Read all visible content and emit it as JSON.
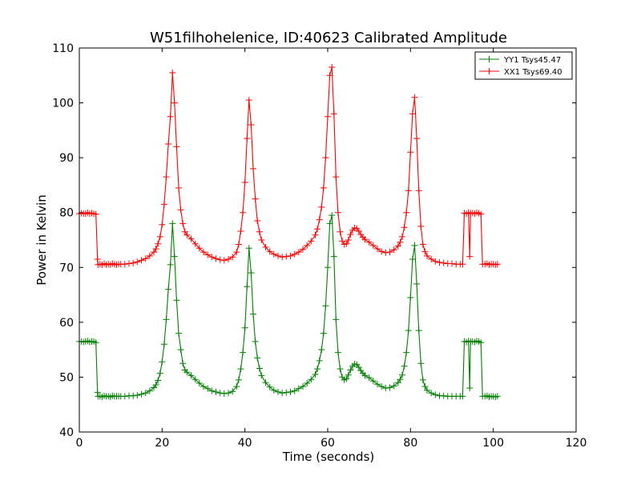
{
  "chart_data": {
    "type": "line",
    "title": "W51filhohelenice, ID:40623 Calibrated Amplitude",
    "xlabel": "Time (seconds)",
    "ylabel": "Power in Kelvin",
    "xlim": [
      0,
      120
    ],
    "ylim": [
      40,
      110
    ],
    "xticks": [
      0,
      20,
      40,
      60,
      80,
      100,
      120
    ],
    "yticks": [
      40,
      50,
      60,
      70,
      80,
      90,
      100,
      110
    ],
    "grid": false,
    "legend_position": "top-right",
    "marker": "+",
    "series": [
      {
        "name": "YY1 Tsys45.47",
        "color": "#008000",
        "points": [
          [
            0.0,
            56.5
          ],
          [
            0.5,
            56.5
          ],
          [
            1.0,
            56.4
          ],
          [
            1.5,
            56.5
          ],
          [
            2.0,
            56.6
          ],
          [
            2.5,
            56.4
          ],
          [
            3.0,
            56.5
          ],
          [
            3.5,
            56.5
          ],
          [
            4.0,
            56.3
          ],
          [
            4.4,
            47.2
          ],
          [
            4.5,
            46.5
          ],
          [
            5.0,
            46.5
          ],
          [
            5.5,
            46.4
          ],
          [
            6.0,
            46.6
          ],
          [
            6.5,
            46.5
          ],
          [
            7.0,
            46.5
          ],
          [
            7.5,
            46.4
          ],
          [
            8.0,
            46.6
          ],
          [
            8.5,
            46.5
          ],
          [
            9.0,
            46.5
          ],
          [
            9.5,
            46.5
          ],
          [
            10.0,
            46.5
          ],
          [
            11.0,
            46.5
          ],
          [
            12.0,
            46.6
          ],
          [
            13.0,
            46.6
          ],
          [
            14.0,
            46.7
          ],
          [
            15.0,
            46.9
          ],
          [
            16.0,
            47.1
          ],
          [
            17.0,
            47.5
          ],
          [
            18.0,
            48.1
          ],
          [
            18.5,
            48.6
          ],
          [
            19.0,
            49.4
          ],
          [
            19.5,
            50.7
          ],
          [
            20.0,
            52.8
          ],
          [
            20.5,
            56.0
          ],
          [
            21.0,
            60.5
          ],
          [
            21.5,
            66.0
          ],
          [
            22.0,
            70.5
          ],
          [
            22.5,
            78.0
          ],
          [
            23.0,
            72.0
          ],
          [
            23.5,
            64.0
          ],
          [
            24.0,
            58.0
          ],
          [
            24.5,
            55.0
          ],
          [
            25.0,
            52.5
          ],
          [
            25.5,
            51.3
          ],
          [
            26.0,
            50.9
          ],
          [
            27.0,
            50.3
          ],
          [
            28.0,
            49.6
          ],
          [
            29.0,
            48.9
          ],
          [
            30.0,
            48.3
          ],
          [
            31.0,
            47.9
          ],
          [
            32.0,
            47.5
          ],
          [
            33.0,
            47.3
          ],
          [
            34.0,
            47.1
          ],
          [
            35.0,
            47.0
          ],
          [
            36.0,
            47.1
          ],
          [
            37.0,
            47.4
          ],
          [
            38.0,
            48.3
          ],
          [
            38.5,
            49.5
          ],
          [
            39.0,
            51.5
          ],
          [
            39.5,
            54.5
          ],
          [
            40.0,
            59.0
          ],
          [
            40.5,
            66.5
          ],
          [
            41.0,
            73.5
          ],
          [
            41.5,
            69.0
          ],
          [
            42.0,
            61.5
          ],
          [
            42.5,
            56.5
          ],
          [
            43.0,
            53.5
          ],
          [
            43.5,
            51.6
          ],
          [
            44.0,
            50.3
          ],
          [
            45.0,
            49.0
          ],
          [
            46.0,
            48.2
          ],
          [
            47.0,
            47.6
          ],
          [
            48.0,
            47.3
          ],
          [
            49.0,
            47.1
          ],
          [
            50.0,
            47.2
          ],
          [
            51.0,
            47.3
          ],
          [
            52.0,
            47.5
          ],
          [
            53.0,
            47.9
          ],
          [
            54.0,
            48.3
          ],
          [
            55.0,
            48.9
          ],
          [
            56.0,
            49.6
          ],
          [
            57.0,
            50.5
          ],
          [
            57.5,
            51.5
          ],
          [
            58.0,
            53.0
          ],
          [
            58.5,
            55.0
          ],
          [
            59.0,
            58.0
          ],
          [
            59.5,
            63.0
          ],
          [
            60.0,
            70.0
          ],
          [
            60.5,
            78.0
          ],
          [
            61.0,
            79.5
          ],
          [
            61.5,
            72.0
          ],
          [
            62.0,
            60.5
          ],
          [
            62.5,
            54.5
          ],
          [
            63.0,
            51.5
          ],
          [
            63.5,
            50.0
          ],
          [
            64.0,
            49.5
          ],
          [
            64.5,
            49.7
          ],
          [
            65.0,
            50.4
          ],
          [
            65.5,
            51.3
          ],
          [
            66.0,
            52.0
          ],
          [
            66.5,
            52.4
          ],
          [
            67.0,
            52.3
          ],
          [
            67.5,
            51.8
          ],
          [
            68.0,
            51.2
          ],
          [
            68.5,
            50.7
          ],
          [
            69.0,
            50.3
          ],
          [
            70.0,
            49.9
          ],
          [
            71.0,
            49.3
          ],
          [
            72.0,
            48.7
          ],
          [
            73.0,
            48.3
          ],
          [
            74.0,
            48.0
          ],
          [
            75.0,
            48.1
          ],
          [
            76.0,
            48.4
          ],
          [
            77.0,
            49.0
          ],
          [
            77.5,
            49.6
          ],
          [
            78.0,
            50.4
          ],
          [
            78.5,
            52.0
          ],
          [
            79.0,
            54.5
          ],
          [
            79.5,
            58.5
          ],
          [
            80.0,
            64.5
          ],
          [
            80.5,
            71.5
          ],
          [
            81.0,
            74.0
          ],
          [
            81.5,
            67.0
          ],
          [
            82.0,
            58.5
          ],
          [
            82.5,
            52.5
          ],
          [
            83.0,
            49.5
          ],
          [
            83.5,
            48.3
          ],
          [
            84.0,
            47.6
          ],
          [
            85.0,
            47.1
          ],
          [
            86.0,
            46.8
          ],
          [
            87.0,
            46.6
          ],
          [
            88.0,
            46.6
          ],
          [
            89.0,
            46.5
          ],
          [
            90.0,
            46.5
          ],
          [
            91.0,
            46.5
          ],
          [
            92.0,
            46.5
          ],
          [
            92.6,
            46.5
          ],
          [
            93.0,
            56.5
          ],
          [
            93.5,
            56.4
          ],
          [
            94.0,
            56.6
          ],
          [
            94.3,
            48.0
          ],
          [
            94.5,
            56.5
          ],
          [
            95.0,
            56.5
          ],
          [
            95.5,
            56.4
          ],
          [
            96.0,
            56.6
          ],
          [
            96.5,
            56.5
          ],
          [
            97.0,
            56.3
          ],
          [
            97.4,
            46.5
          ],
          [
            98.0,
            46.5
          ],
          [
            98.5,
            46.6
          ],
          [
            99.0,
            46.4
          ],
          [
            99.5,
            46.5
          ],
          [
            100.0,
            46.5
          ],
          [
            100.5,
            46.4
          ],
          [
            101.0,
            46.5
          ]
        ]
      },
      {
        "name": "XX1 Tsys69.40",
        "color": "#ff0000",
        "points": [
          [
            0.0,
            79.8
          ],
          [
            0.5,
            79.9
          ],
          [
            1.0,
            79.8
          ],
          [
            1.5,
            79.8
          ],
          [
            2.0,
            80.0
          ],
          [
            2.5,
            79.8
          ],
          [
            3.0,
            79.9
          ],
          [
            3.5,
            79.8
          ],
          [
            4.0,
            79.7
          ],
          [
            4.4,
            71.5
          ],
          [
            4.5,
            70.5
          ],
          [
            5.0,
            70.6
          ],
          [
            5.5,
            70.5
          ],
          [
            6.0,
            70.7
          ],
          [
            6.5,
            70.5
          ],
          [
            7.0,
            70.6
          ],
          [
            7.5,
            70.5
          ],
          [
            8.0,
            70.7
          ],
          [
            8.5,
            70.6
          ],
          [
            9.0,
            70.5
          ],
          [
            9.5,
            70.6
          ],
          [
            10.0,
            70.6
          ],
          [
            11.0,
            70.6
          ],
          [
            12.0,
            70.7
          ],
          [
            13.0,
            70.8
          ],
          [
            14.0,
            71.0
          ],
          [
            15.0,
            71.3
          ],
          [
            16.0,
            71.6
          ],
          [
            17.0,
            72.1
          ],
          [
            18.0,
            72.8
          ],
          [
            18.5,
            73.4
          ],
          [
            19.0,
            74.3
          ],
          [
            19.5,
            75.6
          ],
          [
            20.0,
            77.8
          ],
          [
            20.5,
            81.5
          ],
          [
            21.0,
            86.5
          ],
          [
            21.5,
            92.5
          ],
          [
            22.0,
            97.5
          ],
          [
            22.5,
            105.5
          ],
          [
            23.0,
            100.0
          ],
          [
            23.5,
            92.0
          ],
          [
            24.0,
            84.5
          ],
          [
            24.5,
            80.5
          ],
          [
            25.0,
            78.0
          ],
          [
            25.5,
            76.5
          ],
          [
            26.0,
            75.9
          ],
          [
            27.0,
            75.2
          ],
          [
            28.0,
            74.3
          ],
          [
            29.0,
            73.5
          ],
          [
            30.0,
            72.8
          ],
          [
            31.0,
            72.3
          ],
          [
            32.0,
            71.9
          ],
          [
            33.0,
            71.6
          ],
          [
            34.0,
            71.4
          ],
          [
            35.0,
            71.3
          ],
          [
            36.0,
            71.5
          ],
          [
            37.0,
            71.9
          ],
          [
            38.0,
            72.8
          ],
          [
            38.5,
            74.2
          ],
          [
            39.0,
            76.6
          ],
          [
            39.5,
            80.0
          ],
          [
            40.0,
            85.5
          ],
          [
            40.5,
            93.5
          ],
          [
            41.0,
            100.5
          ],
          [
            41.5,
            96.0
          ],
          [
            42.0,
            88.0
          ],
          [
            42.5,
            82.5
          ],
          [
            43.0,
            78.5
          ],
          [
            43.5,
            76.5
          ],
          [
            44.0,
            75.0
          ],
          [
            45.0,
            73.7
          ],
          [
            46.0,
            72.9
          ],
          [
            47.0,
            72.4
          ],
          [
            48.0,
            72.1
          ],
          [
            49.0,
            71.9
          ],
          [
            50.0,
            72.0
          ],
          [
            51.0,
            72.1
          ],
          [
            52.0,
            72.4
          ],
          [
            53.0,
            72.8
          ],
          [
            54.0,
            73.3
          ],
          [
            55.0,
            74.0
          ],
          [
            56.0,
            74.8
          ],
          [
            57.0,
            75.9
          ],
          [
            57.5,
            77.0
          ],
          [
            58.0,
            78.7
          ],
          [
            58.5,
            81.0
          ],
          [
            59.0,
            84.5
          ],
          [
            59.5,
            90.0
          ],
          [
            60.0,
            97.5
          ],
          [
            60.5,
            105.0
          ],
          [
            61.0,
            106.5
          ],
          [
            61.5,
            98.0
          ],
          [
            62.0,
            86.5
          ],
          [
            62.5,
            80.0
          ],
          [
            63.0,
            76.5
          ],
          [
            63.5,
            74.8
          ],
          [
            64.0,
            74.2
          ],
          [
            64.5,
            74.3
          ],
          [
            65.0,
            75.0
          ],
          [
            65.5,
            76.0
          ],
          [
            66.0,
            76.8
          ],
          [
            66.5,
            77.2
          ],
          [
            67.0,
            77.1
          ],
          [
            67.5,
            76.6
          ],
          [
            68.0,
            76.0
          ],
          [
            68.5,
            75.5
          ],
          [
            69.0,
            75.1
          ],
          [
            70.0,
            74.6
          ],
          [
            71.0,
            74.0
          ],
          [
            72.0,
            73.4
          ],
          [
            73.0,
            72.9
          ],
          [
            74.0,
            72.7
          ],
          [
            75.0,
            72.8
          ],
          [
            76.0,
            73.2
          ],
          [
            77.0,
            73.9
          ],
          [
            77.5,
            74.6
          ],
          [
            78.0,
            75.6
          ],
          [
            78.5,
            77.3
          ],
          [
            79.0,
            80.0
          ],
          [
            79.5,
            84.0
          ],
          [
            80.0,
            91.0
          ],
          [
            80.5,
            98.0
          ],
          [
            81.0,
            101.0
          ],
          [
            81.5,
            93.5
          ],
          [
            82.0,
            84.0
          ],
          [
            82.5,
            77.5
          ],
          [
            83.0,
            74.2
          ],
          [
            83.5,
            72.9
          ],
          [
            84.0,
            72.1
          ],
          [
            85.0,
            71.5
          ],
          [
            86.0,
            71.1
          ],
          [
            87.0,
            70.9
          ],
          [
            88.0,
            70.8
          ],
          [
            89.0,
            70.7
          ],
          [
            90.0,
            70.7
          ],
          [
            91.0,
            70.6
          ],
          [
            92.0,
            70.6
          ],
          [
            92.6,
            70.6
          ],
          [
            93.0,
            79.9
          ],
          [
            93.5,
            79.8
          ],
          [
            94.0,
            80.0
          ],
          [
            94.3,
            72.0
          ],
          [
            94.5,
            79.9
          ],
          [
            95.0,
            79.9
          ],
          [
            95.5,
            79.8
          ],
          [
            96.0,
            80.0
          ],
          [
            96.5,
            79.9
          ],
          [
            97.0,
            79.7
          ],
          [
            97.4,
            70.6
          ],
          [
            98.0,
            70.6
          ],
          [
            98.5,
            70.7
          ],
          [
            99.0,
            70.5
          ],
          [
            99.5,
            70.6
          ],
          [
            100.0,
            70.6
          ],
          [
            100.5,
            70.5
          ],
          [
            101.0,
            70.6
          ]
        ]
      }
    ]
  }
}
